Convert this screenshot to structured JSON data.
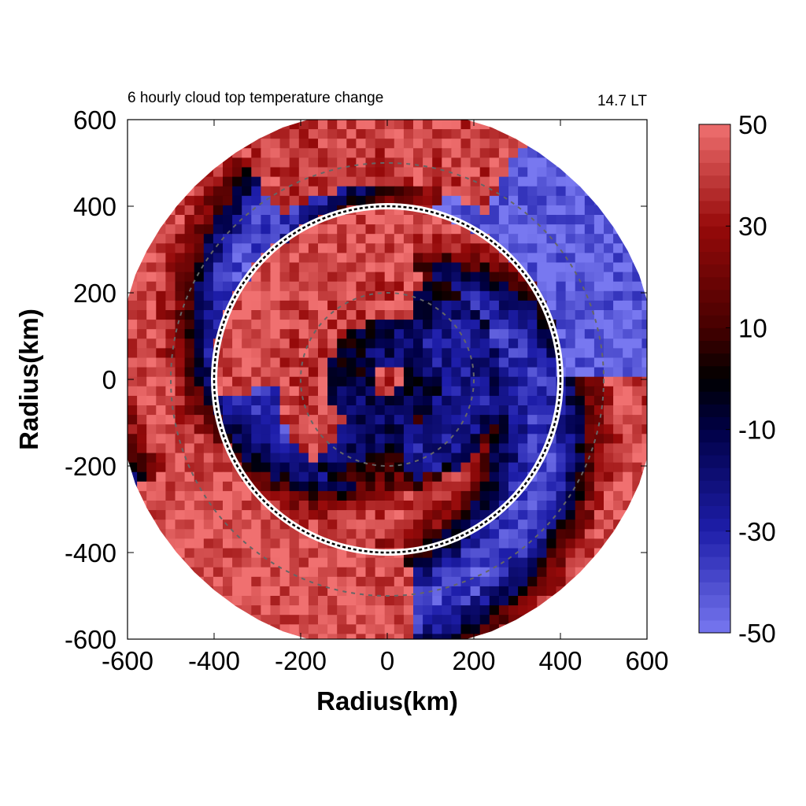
{
  "chart_data": {
    "type": "heatmap",
    "title": "6 hourly cloud top temperature change",
    "time_label": "14.7 LT",
    "xlabel": "Radius(km)",
    "ylabel": "Radius(km)",
    "xlim": [
      -600,
      600
    ],
    "ylim": [
      -600,
      600
    ],
    "x_ticks": [
      "-600",
      "-400",
      "-200",
      "0",
      "200",
      "400",
      "600"
    ],
    "y_ticks": [
      "600",
      "400",
      "200",
      "0",
      "-200",
      "-400",
      "-600"
    ],
    "colorbar": {
      "range": [
        -50,
        50
      ],
      "ticks": [
        "50",
        "30",
        "10",
        "-10",
        "-30",
        "-50"
      ],
      "colors": {
        "high": "#f07070",
        "mid_high": "#8b0000",
        "zero": "#000000",
        "mid_low": "#00008b",
        "low": "#7878f0"
      }
    },
    "reference_circle_radius_km": 400,
    "dashed_circle_radii_km": [
      200,
      500
    ],
    "data_radius_km": 630,
    "field": {
      "features": [
        {
          "kind": "spiral_band",
          "sign": "positive",
          "value": 42
        },
        {
          "kind": "spiral_band",
          "sign": "negative",
          "value": -38
        },
        {
          "kind": "center_blob",
          "sign": "positive",
          "value": 45
        },
        {
          "kind": "inner_core",
          "sign": "negative",
          "value": -15
        }
      ]
    }
  }
}
